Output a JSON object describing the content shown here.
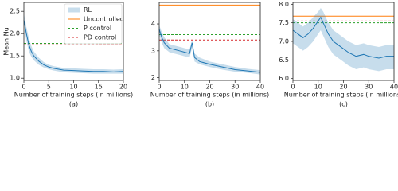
{
  "chart_data": [
    {
      "type": "line",
      "caption": "(a)",
      "xlabel": "Number of training steps (in millions)",
      "ylabel": "Mean Nu",
      "x": [
        0,
        0.5,
        1,
        1.5,
        2,
        3,
        4,
        5,
        6,
        7,
        8,
        10,
        12,
        14,
        16,
        18,
        20
      ],
      "series": [
        {
          "name": "RL",
          "color": "#1f77b4",
          "values": [
            2.3,
            2.0,
            1.75,
            1.6,
            1.5,
            1.38,
            1.3,
            1.25,
            1.22,
            1.2,
            1.18,
            1.17,
            1.16,
            1.15,
            1.15,
            1.14,
            1.15
          ],
          "lower": [
            2.2,
            1.85,
            1.6,
            1.48,
            1.4,
            1.3,
            1.24,
            1.2,
            1.17,
            1.15,
            1.13,
            1.12,
            1.11,
            1.1,
            1.1,
            1.1,
            1.1
          ],
          "upper": [
            2.45,
            2.15,
            1.9,
            1.72,
            1.6,
            1.46,
            1.36,
            1.3,
            1.27,
            1.25,
            1.23,
            1.22,
            1.21,
            1.2,
            1.2,
            1.19,
            1.2
          ]
        }
      ],
      "hlines": [
        {
          "name": "Uncontrolled",
          "color": "#ff7f0e",
          "value": 2.62,
          "dash": false
        },
        {
          "name": "P control",
          "color": "#2ca02c",
          "value": 1.78,
          "dash": true
        },
        {
          "name": "PD control",
          "color": "#d62728",
          "value": 1.75,
          "dash": true
        }
      ],
      "legend": "upper right",
      "xlim": [
        0,
        20
      ],
      "xticks": [
        0,
        5,
        10,
        15,
        20
      ],
      "ylim": [
        0.95,
        2.7
      ],
      "yticks": [
        {
          "value": 1,
          "label": "1.0"
        },
        {
          "value": 1.5,
          "label": "1.5"
        },
        {
          "value": 2,
          "label": "2.0"
        },
        {
          "value": 2.5,
          "label": "2.5"
        }
      ]
    },
    {
      "type": "line",
      "caption": "(b)",
      "xlabel": "Number of training steps (in millions)",
      "x": [
        0,
        1,
        2,
        4,
        6,
        8,
        10,
        12,
        13,
        14,
        16,
        20,
        25,
        30,
        35,
        40
      ],
      "series": [
        {
          "color": "#1f77b4",
          "values": [
            3.8,
            3.5,
            3.3,
            3.1,
            3.05,
            3.0,
            2.95,
            2.9,
            3.3,
            2.75,
            2.6,
            2.5,
            2.4,
            2.3,
            2.25,
            2.2
          ],
          "lower": [
            3.6,
            3.3,
            3.1,
            2.95,
            2.9,
            2.85,
            2.8,
            2.75,
            3.1,
            2.6,
            2.5,
            2.4,
            2.3,
            2.22,
            2.18,
            2.12
          ],
          "upper": [
            3.95,
            3.7,
            3.5,
            3.25,
            3.2,
            3.15,
            3.1,
            3.05,
            3.4,
            2.9,
            2.75,
            2.6,
            2.5,
            2.4,
            2.33,
            2.28
          ]
        }
      ],
      "hlines": [
        {
          "color": "#ff7f0e",
          "value": 4.7,
          "dash": false
        },
        {
          "color": "#2ca02c",
          "value": 3.6,
          "dash": true
        },
        {
          "color": "#d62728",
          "value": 3.4,
          "dash": true
        }
      ],
      "xlim": [
        0,
        40
      ],
      "xticks": [
        0,
        10,
        20,
        30,
        40
      ],
      "ylim": [
        1.9,
        4.8
      ],
      "yticks": [
        2,
        3,
        4
      ]
    },
    {
      "type": "line",
      "caption": "(c)",
      "xlabel": "Number of training steps (in millions)",
      "x": [
        0,
        2,
        4,
        6,
        8,
        10,
        11,
        12,
        14,
        16,
        18,
        20,
        22,
        25,
        28,
        30,
        34,
        37,
        40
      ],
      "series": [
        {
          "color": "#1f77b4",
          "values": [
            7.3,
            7.2,
            7.1,
            7.2,
            7.35,
            7.55,
            7.65,
            7.5,
            7.2,
            7.0,
            6.9,
            6.8,
            6.7,
            6.6,
            6.65,
            6.6,
            6.55,
            6.6,
            6.6
          ],
          "lower": [
            6.95,
            6.85,
            6.75,
            6.85,
            7.0,
            7.2,
            7.3,
            7.15,
            6.85,
            6.65,
            6.55,
            6.45,
            6.35,
            6.25,
            6.3,
            6.25,
            6.2,
            6.25,
            6.25
          ],
          "upper": [
            7.6,
            7.5,
            7.4,
            7.5,
            7.65,
            7.8,
            7.9,
            7.8,
            7.5,
            7.3,
            7.2,
            7.1,
            7.0,
            6.9,
            6.95,
            6.9,
            6.85,
            6.9,
            6.9
          ]
        }
      ],
      "hlines": [
        {
          "color": "#ff7f0e",
          "value": 7.68,
          "dash": false
        },
        {
          "color": "#d62728",
          "value": 7.55,
          "dash": true
        },
        {
          "color": "#2ca02c",
          "value": 7.5,
          "dash": true
        }
      ],
      "xlim": [
        0,
        40
      ],
      "xticks": [
        0,
        10,
        20,
        30,
        40
      ],
      "ylim": [
        5.95,
        8.05
      ],
      "yticks": [
        {
          "value": 6,
          "label": "6.0"
        },
        {
          "value": 6.5,
          "label": "6.5"
        },
        {
          "value": 7,
          "label": "7.0"
        },
        {
          "value": 7.5,
          "label": "7.5"
        },
        {
          "value": 8,
          "label": "8.0"
        }
      ]
    }
  ]
}
